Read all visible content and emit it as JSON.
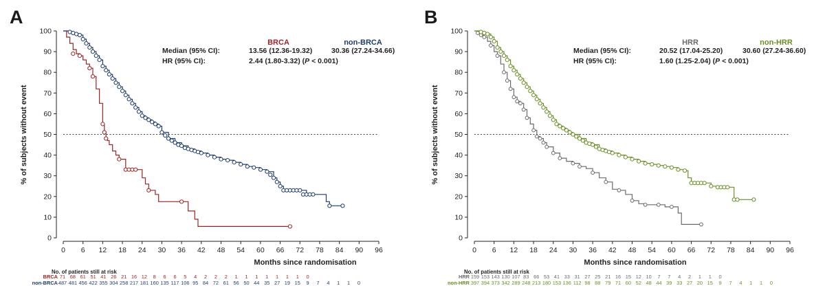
{
  "colors": {
    "brca": "#9b2424",
    "non_brca": "#1d3d6b",
    "hrr": "#6a6a6a",
    "non_hrr": "#6b8e23",
    "axis": "#222222"
  },
  "chart_data": [
    {
      "type": "line",
      "panel_label": "A",
      "xlabel": "Months since randomisation",
      "ylabel": "% of subjects without event",
      "xticks": [
        0,
        6,
        12,
        18,
        24,
        30,
        36,
        42,
        48,
        54,
        60,
        66,
        72,
        78,
        84,
        90,
        96
      ],
      "yticks": [
        0,
        10,
        20,
        30,
        40,
        50,
        60,
        70,
        80,
        90,
        100
      ],
      "xlim": [
        0,
        96
      ],
      "ylim": [
        0,
        100
      ],
      "reference_line_y": 50,
      "stats": {
        "median_label": "Median (95% CI):",
        "hr_label": "HR (95% CI):",
        "median_values": [
          "13.56 (12.36-19.32)",
          "30.36 (27.24-34.66)"
        ],
        "hr_prefix": "2.44 (1.80-3.32) (",
        "p_symbol": "P",
        "hr_suffix": " < 0.001)"
      },
      "series": [
        {
          "name": "BRCA",
          "color_key": "brca",
          "marker_size": 2.6,
          "x": [
            0,
            1,
            2,
            3,
            4,
            5,
            6,
            7,
            8,
            9,
            10,
            11,
            12,
            12.5,
            13,
            13.5,
            14,
            15,
            16,
            17,
            18,
            19,
            20,
            21,
            22,
            23,
            24,
            25,
            26,
            27,
            28,
            29,
            30,
            34,
            36,
            38,
            40,
            41,
            44,
            50,
            60,
            66,
            69
          ],
          "y": [
            100,
            97,
            94,
            91,
            89,
            88,
            86,
            84,
            82,
            78,
            72,
            65,
            55,
            51,
            48,
            47,
            45,
            42,
            40,
            38,
            38,
            33,
            33,
            33,
            33,
            33,
            29,
            26,
            23,
            23,
            21,
            17.5,
            17.5,
            17.5,
            17.5,
            13,
            9,
            5.5,
            5.5,
            5.5,
            5.5,
            5.5,
            5.5
          ],
          "censor_x": [
            3,
            5,
            8,
            9,
            12,
            12.5,
            13,
            17,
            19,
            20,
            21,
            22,
            26,
            36,
            69
          ],
          "censor_y": [
            89,
            88,
            82,
            78,
            55,
            51,
            48,
            38,
            33,
            33,
            33,
            33,
            23,
            17.5,
            5.5
          ]
        },
        {
          "name": "non-BRCA",
          "color_key": "non_brca",
          "marker_size": 2.6,
          "x": [
            0,
            1,
            2,
            3,
            4,
            5,
            6,
            7,
            8,
            9,
            10,
            11,
            12,
            13,
            14,
            15,
            16,
            17,
            18,
            19,
            20,
            21,
            22,
            23,
            24,
            25,
            26,
            27,
            28,
            29,
            30,
            32,
            34,
            36,
            38,
            40,
            42,
            44,
            46,
            48,
            50,
            52,
            54,
            56,
            58,
            60,
            62,
            64,
            65,
            66,
            67,
            68,
            70,
            72,
            74,
            76,
            78,
            80,
            81,
            84,
            85
          ],
          "y": [
            100,
            100,
            99.5,
            99,
            98.5,
            98,
            96,
            94,
            92,
            90,
            88,
            86,
            83,
            81,
            79,
            77,
            75,
            73,
            71,
            69,
            67,
            65,
            63,
            61,
            59,
            58,
            57,
            56,
            55,
            54,
            51,
            48,
            46,
            44.5,
            43,
            42,
            41,
            40,
            39,
            38,
            37.5,
            36.5,
            35.5,
            34.5,
            34,
            33,
            32,
            29,
            27,
            25,
            23,
            23,
            23,
            23,
            21,
            21,
            21,
            17.5,
            15.5,
            15.5,
            15.5
          ],
          "censor_x": [
            2,
            3,
            4,
            5,
            6,
            7,
            8,
            9,
            10,
            11,
            12,
            13,
            14,
            15,
            16,
            17,
            18,
            19,
            20,
            21,
            22,
            23,
            24,
            25,
            26,
            27,
            28,
            29,
            30,
            31,
            32,
            33,
            34,
            35,
            36,
            37,
            38,
            39,
            40,
            41,
            42,
            44,
            46,
            48,
            50,
            52,
            54,
            56,
            58,
            60,
            62,
            63,
            64,
            65,
            66,
            67,
            68,
            69,
            70,
            71,
            72,
            73,
            74,
            75,
            76,
            81,
            85
          ],
          "censor_y": [
            99.5,
            99,
            98.5,
            98,
            96,
            94,
            92,
            90,
            88,
            86,
            83,
            81,
            79,
            77,
            75,
            73,
            71,
            69,
            67,
            65,
            63,
            61,
            59,
            58,
            57,
            56,
            55,
            54,
            51,
            49.5,
            48,
            47,
            46,
            45,
            44.5,
            43.5,
            43,
            42.5,
            42,
            41.5,
            41,
            40,
            39,
            38,
            37.5,
            36.5,
            35.5,
            34.5,
            34,
            33,
            32,
            30.5,
            29,
            27,
            25,
            23,
            23,
            23,
            23,
            23,
            23,
            21,
            21,
            21,
            21,
            15.5,
            15.5
          ]
        }
      ],
      "risk_table": {
        "title": "No. of patients still at risk",
        "rows": [
          {
            "label": "BRCA",
            "color_key": "brca",
            "values": [
              "71",
              "68",
              "61",
              "51",
              "41",
              "26",
              "21",
              "16",
              "12",
              "8",
              "6",
              "6",
              "5",
              "4",
              "2",
              "2",
              "2",
              "1",
              "1",
              "1",
              "1",
              "1",
              "1",
              "1",
              "0"
            ]
          },
          {
            "label": "non-BRCA",
            "color_key": "non_brca",
            "values": [
              "487",
              "481",
              "456",
              "422",
              "355",
              "304",
              "258",
              "217",
              "181",
              "160",
              "135",
              "117",
              "106",
              "95",
              "84",
              "72",
              "61",
              "56",
              "50",
              "44",
              "35",
              "27",
              "19",
              "15",
              "9",
              "7",
              "4",
              "1",
              "1",
              "0"
            ]
          }
        ]
      }
    },
    {
      "type": "line",
      "panel_label": "B",
      "xlabel": "Months since randomisation",
      "ylabel": "% of subjects without event",
      "xticks": [
        0,
        6,
        12,
        18,
        24,
        30,
        36,
        42,
        48,
        54,
        60,
        66,
        72,
        78,
        84,
        90,
        96
      ],
      "yticks": [
        0,
        10,
        20,
        30,
        40,
        50,
        60,
        70,
        80,
        90,
        100
      ],
      "xlim": [
        0,
        96
      ],
      "ylim": [
        0,
        100
      ],
      "reference_line_y": 50,
      "stats": {
        "median_label": "Median (95% CI):",
        "hr_label": "HR (95% CI):",
        "median_values": [
          "20.52 (17.04-25.20)",
          "30.60 (27.24-36.60)"
        ],
        "hr_prefix": "1.60 (1.25-2.04) (",
        "p_symbol": "P",
        "hr_suffix": " < 0.001)"
      },
      "series": [
        {
          "name": "HRR",
          "color_key": "hrr",
          "marker_size": 2.4,
          "x": [
            0,
            1,
            2,
            3,
            4,
            5,
            6,
            7,
            8,
            9,
            10,
            11,
            12,
            13,
            14,
            15,
            16,
            17,
            18,
            19,
            20,
            21,
            22,
            24,
            26,
            28,
            30,
            32,
            34,
            36,
            38,
            40,
            42,
            44,
            46,
            48,
            50,
            52,
            54,
            56,
            58,
            60,
            62,
            63,
            66,
            69
          ],
          "y": [
            100,
            99,
            98,
            97,
            95,
            93,
            90,
            88,
            84,
            80,
            76,
            72,
            68,
            66,
            65,
            62,
            58,
            55,
            52,
            49,
            48,
            46,
            44,
            41,
            38.5,
            37,
            36,
            34.5,
            33.5,
            31.5,
            29,
            27,
            23.5,
            23,
            21,
            18,
            16.5,
            16,
            16,
            16,
            15,
            15,
            12,
            6.5,
            6.5,
            6.5
          ],
          "censor_x": [
            1,
            2,
            3,
            5,
            7,
            9,
            10,
            11,
            12,
            13,
            14,
            15,
            16,
            18,
            19,
            20,
            21,
            22,
            24,
            26,
            30,
            32,
            36,
            40,
            44,
            48,
            52,
            56,
            60,
            69
          ],
          "censor_y": [
            99,
            98,
            97,
            93,
            88,
            80,
            76,
            72,
            68,
            66,
            65,
            62,
            58,
            52,
            49,
            48,
            46,
            44,
            41,
            38.5,
            36,
            34.5,
            31.5,
            27,
            23,
            18,
            16,
            16,
            15,
            6.5
          ]
        },
        {
          "name": "non-HRR",
          "color_key": "non_hrr",
          "marker_size": 2.6,
          "x": [
            0,
            1,
            2,
            3,
            4,
            5,
            6,
            7,
            8,
            9,
            10,
            11,
            12,
            13,
            14,
            15,
            16,
            17,
            18,
            19,
            20,
            21,
            22,
            23,
            24,
            25,
            26,
            27,
            28,
            29,
            30,
            32,
            34,
            36,
            38,
            40,
            42,
            44,
            46,
            48,
            50,
            52,
            54,
            56,
            58,
            60,
            62,
            64,
            65,
            66,
            68,
            70,
            72,
            74,
            76,
            78,
            79,
            80,
            82,
            85
          ],
          "y": [
            100,
            100,
            99.5,
            99,
            98.5,
            97,
            95,
            92,
            90,
            88,
            86,
            83,
            81,
            79,
            77,
            75,
            73,
            71,
            69,
            67,
            65,
            63,
            61,
            59,
            57,
            55,
            54,
            53,
            52,
            51,
            50,
            48,
            46,
            45,
            43,
            42,
            41,
            40,
            39,
            38,
            37,
            36,
            35.5,
            35,
            34.5,
            34,
            33,
            32.5,
            29,
            26.5,
            26.5,
            26.5,
            25,
            24.5,
            24.5,
            24.5,
            18.5,
            18.5,
            18.5,
            18.5
          ],
          "censor_x": [
            2,
            3,
            4,
            5,
            6,
            7,
            8,
            9,
            10,
            11,
            12,
            13,
            14,
            15,
            16,
            17,
            18,
            19,
            20,
            21,
            22,
            23,
            24,
            25,
            26,
            27,
            28,
            29,
            30,
            31,
            32,
            33,
            34,
            35,
            36,
            37,
            38,
            39,
            40,
            41,
            42,
            44,
            46,
            48,
            50,
            52,
            54,
            56,
            58,
            60,
            62,
            64,
            66,
            67,
            68,
            69,
            70,
            72,
            74,
            75,
            76,
            77,
            79,
            80,
            85
          ],
          "censor_y": [
            99.5,
            99,
            98.5,
            97,
            95,
            92,
            90,
            88,
            86,
            83,
            81,
            79,
            77,
            75,
            73,
            71,
            69,
            67,
            65,
            63,
            61,
            59,
            57,
            55,
            54,
            53,
            52,
            51,
            50,
            49,
            48,
            47,
            46,
            45.5,
            45,
            44,
            43,
            42.5,
            42,
            41.5,
            41,
            40,
            39,
            38,
            37,
            36,
            35.5,
            35,
            34.5,
            34,
            33,
            32.5,
            26.5,
            26.5,
            26.5,
            26.5,
            26.5,
            25,
            24.5,
            24.5,
            24.5,
            24.5,
            18.5,
            18.5,
            18.5
          ]
        }
      ],
      "risk_table": {
        "title": "No. of patients still at risk",
        "rows": [
          {
            "label": "HRR",
            "color_key": "hrr",
            "values": [
              "159",
              "153",
              "143",
              "130",
              "107",
              "83",
              "66",
              "53",
              "41",
              "33",
              "31",
              "27",
              "25",
              "21",
              "16",
              "15",
              "12",
              "10",
              "7",
              "7",
              "4",
              "2",
              "1",
              "1",
              "0"
            ]
          },
          {
            "label": "non-HRR",
            "color_key": "non_hrr",
            "values": [
              "397",
              "394",
              "373",
              "342",
              "289",
              "248",
              "213",
              "180",
              "153",
              "136",
              "112",
              "98",
              "88",
              "79",
              "71",
              "60",
              "52",
              "48",
              "44",
              "39",
              "33",
              "27",
              "20",
              "15",
              "9",
              "7",
              "4",
              "1",
              "1",
              "0"
            ]
          }
        ]
      }
    }
  ]
}
